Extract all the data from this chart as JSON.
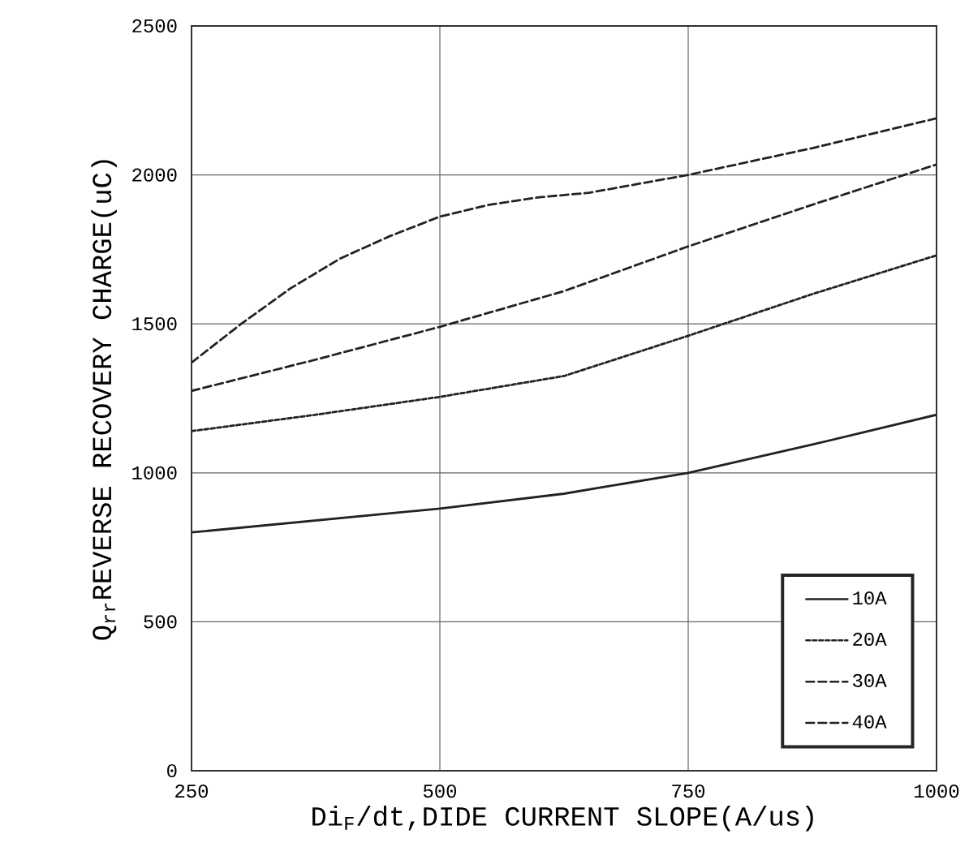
{
  "chart_data": {
    "type": "line",
    "xlabel": "Di$_{F}$/dt,DIDE CURRENT SLOPE(A/us)",
    "ylabel": "Q$_{rr}$REVERSE RECOVERY CHARGE(uC)",
    "xlim": [
      250,
      1000
    ],
    "xticks": [
      250,
      500,
      750,
      1000
    ],
    "ylim": [
      0,
      2500
    ],
    "yticks": [
      0,
      500,
      1000,
      1500,
      2000,
      2500
    ],
    "grid": true,
    "legend": "bottom right",
    "marker": "none",
    "series": [
      {
        "name": "10A",
        "color": "#222222",
        "line_style": "solid",
        "x": [
          250,
          375,
          500,
          625,
          750,
          875,
          1000
        ],
        "values": [
          800,
          840,
          880,
          930,
          1000,
          1095,
          1195
        ]
      },
      {
        "name": "20A",
        "color": "#222222",
        "line_style": "dotted",
        "x": [
          250,
          375,
          500,
          625,
          750,
          875,
          1000
        ],
        "values": [
          1140,
          1195,
          1255,
          1325,
          1460,
          1600,
          1730
        ]
      },
      {
        "name": "30A",
        "color": "#222222",
        "line_style": "dashed",
        "x": [
          250,
          375,
          500,
          625,
          750,
          875,
          1000
        ],
        "values": [
          1275,
          1380,
          1490,
          1610,
          1760,
          1900,
          2035
        ]
      },
      {
        "name": "40A",
        "color": "#222222",
        "line_style": "dashed",
        "x": [
          250,
          300,
          350,
          400,
          450,
          500,
          550,
          600,
          650,
          750,
          875,
          1000
        ],
        "values": [
          1370,
          1500,
          1620,
          1720,
          1795,
          1860,
          1900,
          1925,
          1940,
          2000,
          2090,
          2190
        ]
      }
    ]
  }
}
